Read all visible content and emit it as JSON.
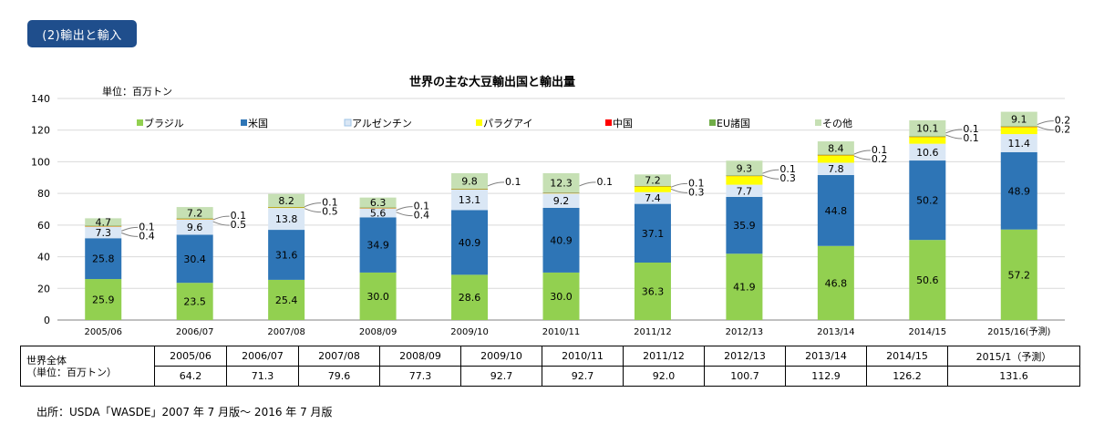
{
  "section_label": "(2)輸出と輸入",
  "chart_data": {
    "type": "bar",
    "stacked": true,
    "title": "世界の主な大豆輸出国と輸出量",
    "unit_label": "単位：百万トン",
    "ylim": [
      0,
      140
    ],
    "yticks": [
      0,
      20,
      40,
      60,
      80,
      100,
      120,
      140
    ],
    "grid": true,
    "legend_position": "top",
    "categories": [
      "2005/06",
      "2006/07",
      "2007/08",
      "2008/09",
      "2009/10",
      "2010/11",
      "2011/12",
      "2012/13",
      "2013/14",
      "2014/15",
      "2015/16(予測)"
    ],
    "series": [
      {
        "name": "ブラジル",
        "color": "#92d050",
        "values": [
          25.9,
          23.5,
          25.4,
          30.0,
          28.6,
          30.0,
          36.3,
          41.9,
          46.8,
          50.6,
          57.2
        ]
      },
      {
        "name": "米国",
        "color": "#2e75b6",
        "values": [
          25.8,
          30.4,
          31.6,
          34.9,
          40.9,
          40.9,
          37.1,
          35.9,
          44.8,
          50.2,
          48.9
        ]
      },
      {
        "name": "アルゼンチン",
        "color": "#dae7f5",
        "values": [
          7.3,
          9.6,
          13.8,
          5.6,
          13.1,
          9.2,
          7.4,
          7.7,
          7.8,
          10.6,
          11.4
        ]
      },
      {
        "name": "パラグアイ",
        "color": "#ffff00",
        "values": [
          0.4,
          0.5,
          0.5,
          0.4,
          0.2,
          0.2,
          3.6,
          5.5,
          4.8,
          4.5,
          4.6
        ]
      },
      {
        "name": "中国",
        "color": "#ff0000",
        "values": [
          0.1,
          0.1,
          0.1,
          0.1,
          0.1,
          0.1,
          0.3,
          0.3,
          0.2,
          0.1,
          0.2
        ]
      },
      {
        "name": "EU諸国",
        "color": "#70ad47",
        "values": [
          0.1,
          0.1,
          0.1,
          0.1,
          0.1,
          0.1,
          0.1,
          0.1,
          0.1,
          0.1,
          0.2
        ]
      },
      {
        "name": "その他",
        "color": "#c6e0b4",
        "values": [
          4.7,
          7.2,
          8.2,
          6.3,
          9.8,
          12.3,
          7.2,
          9.3,
          8.4,
          10.1,
          9.1
        ]
      }
    ],
    "callouts": [
      {
        "top": "0.1",
        "bottom": "0.4"
      },
      {
        "top": "0.1",
        "bottom": "0.5"
      },
      {
        "top": "0.1",
        "bottom": "0.5"
      },
      {
        "top": "0.1",
        "bottom": "0.4"
      },
      {
        "top": "0.1",
        "bottom": ""
      },
      {
        "top": "0.1",
        "bottom": ""
      },
      {
        "top": "0.1",
        "bottom": "0.3"
      },
      {
        "top": "0.1",
        "bottom": "0.3"
      },
      {
        "top": "0.1",
        "bottom": "0.2"
      },
      {
        "top": "0.1",
        "bottom": "0.1"
      },
      {
        "top": "0.2",
        "bottom": "0.2"
      }
    ]
  },
  "summary_table": {
    "row_label_line1": "世界全体",
    "row_label_line2": "（単位：百万トン）",
    "years": [
      "2005/06",
      "2006/07",
      "2007/08",
      "2008/09",
      "2009/10",
      "2010/11",
      "2011/12",
      "2012/13",
      "2013/14",
      "2014/15",
      "2015/1（予測）"
    ],
    "totals": [
      "64.2",
      "71.3",
      "79.6",
      "77.3",
      "92.7",
      "92.7",
      "92.0",
      "100.7",
      "112.9",
      "126.2",
      "131.6"
    ]
  },
  "source_note": "出所：USDA「WASDE」2007 年 7 月版～ 2016 年 7 月版"
}
